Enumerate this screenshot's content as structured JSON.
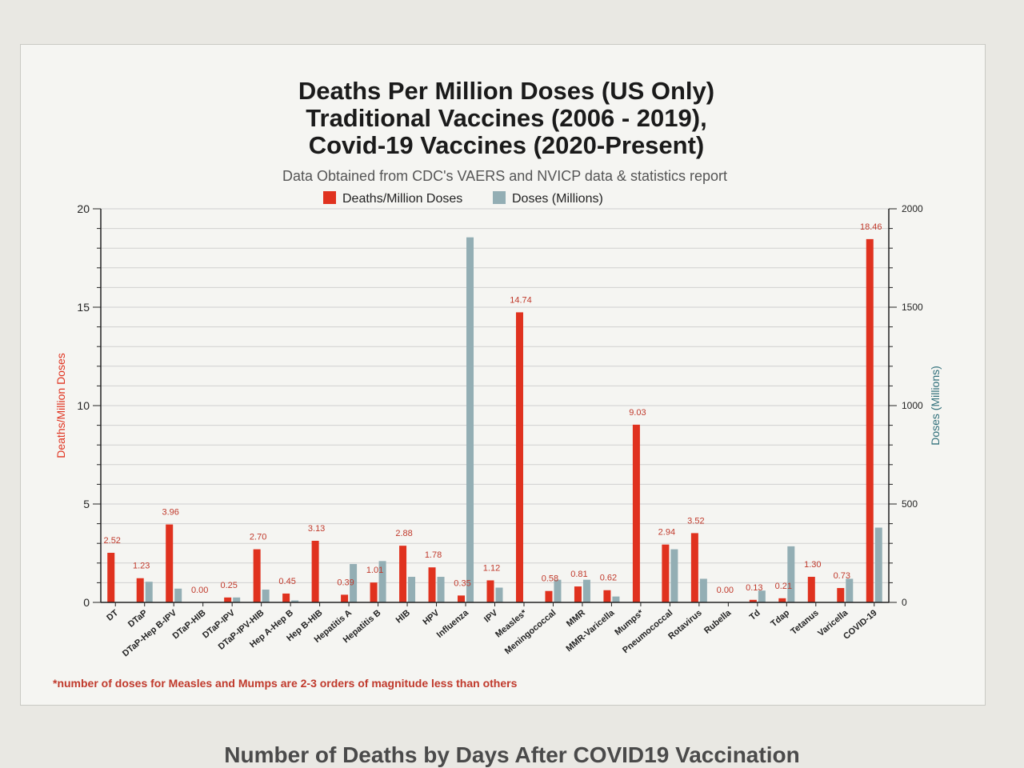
{
  "page": {
    "bottom_heading": "Number of Deaths by Days After COVID19 Vaccination",
    "footnote": "*number of doses for Measles and Mumps are 2-3 orders of magnitude less than others"
  },
  "colors": {
    "deaths": "#e0321f",
    "doses": "#93aeb4",
    "grid": "#d0d0d0",
    "axis": "#222222",
    "right_axis_title": "#2f6f7a"
  },
  "chart_data": {
    "type": "bar",
    "title_lines": [
      "Deaths Per Million Doses (US Only)",
      "Traditional Vaccines (2006 - 2019),",
      "Covid-19 Vaccines (2020-Present)"
    ],
    "subtitle": "Data Obtained from CDC's VAERS and NVICP data & statistics report",
    "ylabel": "Deaths/Million Doses",
    "y2label": "Doses (Millions)",
    "ylim": [
      0,
      20
    ],
    "y2lim": [
      0,
      2000
    ],
    "yticks": [
      0,
      5,
      10,
      15,
      20
    ],
    "y2ticks": [
      0,
      500,
      1000,
      1500,
      2000
    ],
    "legend_position": "top-center",
    "grid": true,
    "categories": [
      "DT",
      "DTaP",
      "DTaP-Hep B-IPV",
      "DTaP-HIB",
      "DTaP-IPV",
      "DTaP-IPV-HIB",
      "Hep A-Hep B",
      "Hep B-HIB",
      "Hepatitis A",
      "Hepatitis B",
      "HIB",
      "HPV",
      "Influenza",
      "IPV",
      "Measles*",
      "Meningococcal",
      "MMR",
      "MMR-Varicella",
      "Mumps*",
      "Pneumococcal",
      "Rotavirus",
      "Rubella",
      "Td",
      "Tdap",
      "Tetanus",
      "Varicella",
      "COVID-19"
    ],
    "series": [
      {
        "name": "Deaths/Million Doses",
        "axis": "left",
        "values": [
          2.52,
          1.23,
          3.96,
          0.0,
          0.25,
          2.7,
          0.45,
          3.13,
          0.39,
          1.01,
          2.88,
          1.78,
          0.35,
          1.12,
          14.74,
          0.58,
          0.81,
          0.62,
          9.03,
          2.94,
          3.52,
          0.0,
          0.13,
          0.21,
          1.3,
          0.73,
          18.46
        ],
        "labels": [
          "2.52",
          "1.23",
          "3.96",
          "0.00",
          "0.25",
          "2.70",
          "0.45",
          "3.13",
          "0.39",
          "1.01",
          "2.88",
          "1.78",
          "0.35",
          "1.12",
          "14.74",
          "0.58",
          "0.81",
          "0.62",
          "9.03",
          "2.94",
          "3.52",
          "0.00",
          "0.13",
          "0.21",
          "1.30",
          "0.73",
          "18.46"
        ]
      },
      {
        "name": "Doses (Millions)",
        "axis": "right",
        "values": [
          0,
          105,
          70,
          0,
          25,
          65,
          10,
          0,
          195,
          210,
          130,
          130,
          1855,
          75,
          0,
          115,
          115,
          30,
          0,
          270,
          120,
          0,
          60,
          285,
          0,
          120,
          380
        ]
      }
    ]
  }
}
